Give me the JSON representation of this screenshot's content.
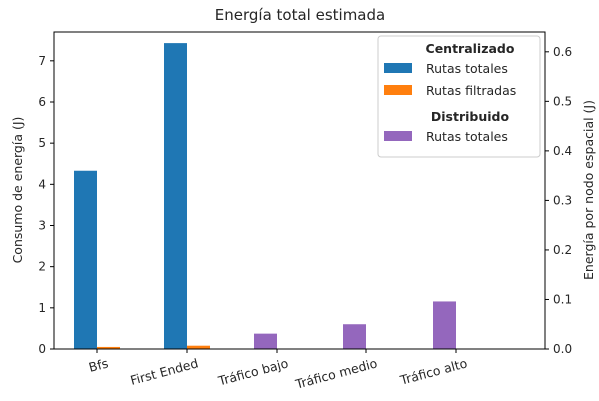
{
  "chart_data": {
    "type": "bar",
    "title": "Energía total estimada",
    "categories": [
      "Bfs",
      "First Ended",
      "Tráfico bajo",
      "Tráfico medio",
      "Tráfico alto"
    ],
    "left_axis": {
      "label": "Consumo de energía (J)",
      "ylim": [
        0,
        7.7
      ],
      "ticks": [
        0,
        1,
        2,
        3,
        4,
        5,
        6,
        7
      ]
    },
    "right_axis": {
      "label": "Energía por nodo espacial (J)",
      "ylim": [
        0,
        0.64
      ],
      "ticks": [
        "0.0",
        "0.1",
        "0.2",
        "0.3",
        "0.4",
        "0.5",
        "0.6"
      ]
    },
    "groups": [
      {
        "heading": "Centralizado",
        "axis": "left",
        "series": [
          {
            "name": "Rutas totales",
            "color": "#1f77b4",
            "values": [
              4.33,
              7.43,
              null,
              null,
              null
            ]
          },
          {
            "name": "Rutas filtradas",
            "color": "#ff7f0e",
            "values": [
              0.05,
              0.08,
              null,
              null,
              null
            ]
          }
        ]
      },
      {
        "heading": "Distribuido",
        "axis": "right",
        "series": [
          {
            "name": "Rutas totales",
            "color": "#9467bd",
            "values": [
              null,
              null,
              0.031,
              0.05,
              0.096
            ]
          }
        ]
      }
    ],
    "legend_position": "top-right",
    "grid": false
  }
}
